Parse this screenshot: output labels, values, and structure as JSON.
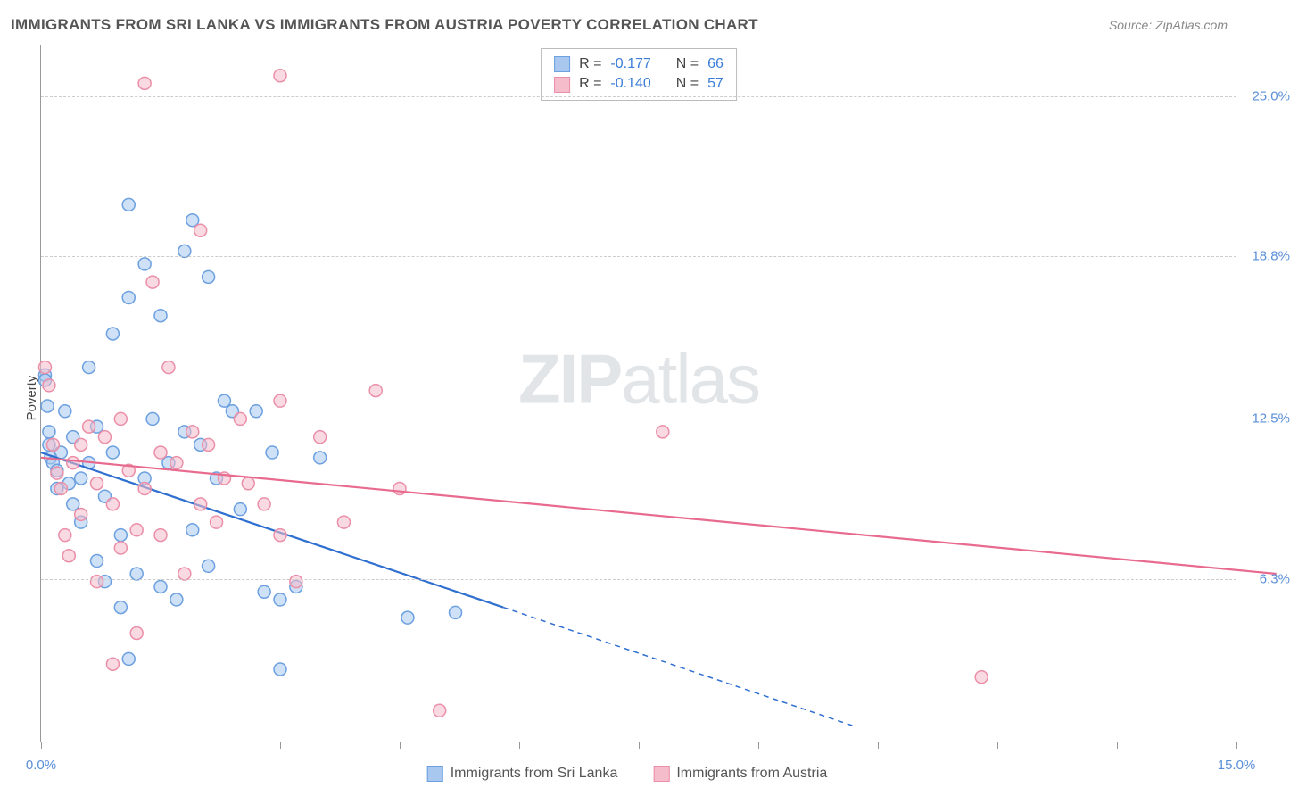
{
  "title": "IMMIGRANTS FROM SRI LANKA VS IMMIGRANTS FROM AUSTRIA POVERTY CORRELATION CHART",
  "source": "Source: ZipAtlas.com",
  "watermark_prefix": "ZIP",
  "watermark_suffix": "atlas",
  "y_axis_label": "Poverty",
  "chart": {
    "type": "scatter",
    "xlim": [
      0,
      15
    ],
    "ylim": [
      0,
      27
    ],
    "x_ticks": [
      0,
      1.5,
      3,
      4.5,
      6,
      7.5,
      9,
      10.5,
      12,
      13.5,
      15
    ],
    "x_tick_labels": {
      "0": "0.0%",
      "15": "15.0%"
    },
    "y_gridlines": [
      6.3,
      12.5,
      18.8,
      25.0
    ],
    "y_tick_labels": [
      "6.3%",
      "12.5%",
      "18.8%",
      "25.0%"
    ],
    "background_color": "#ffffff",
    "grid_color": "#cccccc",
    "axis_color": "#999999",
    "tick_label_color": "#5a8fd8",
    "marker_radius": 7,
    "marker_stroke_width": 1.5,
    "trend_line_width": 2.2,
    "series": [
      {
        "name": "Immigrants from Sri Lanka",
        "fill_color": "#a8c8ef",
        "stroke_color": "#6ca0e0",
        "line_color": "#2f6fd0",
        "fill_opacity": 0.55,
        "R": "-0.177",
        "N": "66",
        "trend": {
          "x1": 0,
          "y1": 11.2,
          "x2": 5.8,
          "y2": 5.2,
          "x2_dash": 10.2,
          "y2_dash": 0.6
        },
        "points": [
          [
            0.05,
            14.2
          ],
          [
            0.05,
            14.0
          ],
          [
            0.08,
            13.0
          ],
          [
            0.1,
            12.0
          ],
          [
            0.1,
            11.5
          ],
          [
            0.12,
            11.0
          ],
          [
            0.15,
            10.8
          ],
          [
            0.2,
            10.5
          ],
          [
            0.2,
            9.8
          ],
          [
            0.25,
            11.2
          ],
          [
            0.3,
            12.8
          ],
          [
            0.35,
            10.0
          ],
          [
            0.4,
            9.2
          ],
          [
            0.4,
            11.8
          ],
          [
            0.5,
            10.2
          ],
          [
            0.5,
            8.5
          ],
          [
            0.6,
            14.5
          ],
          [
            0.6,
            10.8
          ],
          [
            0.7,
            12.2
          ],
          [
            0.7,
            7.0
          ],
          [
            0.8,
            9.5
          ],
          [
            0.8,
            6.2
          ],
          [
            0.9,
            15.8
          ],
          [
            0.9,
            11.2
          ],
          [
            1.0,
            5.2
          ],
          [
            1.0,
            8.0
          ],
          [
            1.1,
            20.8
          ],
          [
            1.1,
            17.2
          ],
          [
            1.1,
            3.2
          ],
          [
            1.2,
            6.5
          ],
          [
            1.3,
            18.5
          ],
          [
            1.3,
            10.2
          ],
          [
            1.4,
            12.5
          ],
          [
            1.5,
            16.5
          ],
          [
            1.5,
            6.0
          ],
          [
            1.6,
            10.8
          ],
          [
            1.7,
            5.5
          ],
          [
            1.8,
            19.0
          ],
          [
            1.8,
            12.0
          ],
          [
            1.9,
            20.2
          ],
          [
            1.9,
            8.2
          ],
          [
            2.0,
            11.5
          ],
          [
            2.1,
            18.0
          ],
          [
            2.1,
            6.8
          ],
          [
            2.2,
            10.2
          ],
          [
            2.3,
            13.2
          ],
          [
            2.4,
            12.8
          ],
          [
            2.5,
            9.0
          ],
          [
            2.7,
            12.8
          ],
          [
            2.8,
            5.8
          ],
          [
            2.9,
            11.2
          ],
          [
            3.0,
            5.5
          ],
          [
            3.0,
            2.8
          ],
          [
            3.2,
            6.0
          ],
          [
            3.5,
            11.0
          ],
          [
            4.6,
            4.8
          ],
          [
            5.2,
            5.0
          ]
        ]
      },
      {
        "name": "Immigrants from Austria",
        "fill_color": "#f5bccb",
        "stroke_color": "#eb8fa8",
        "line_color": "#e86a8e",
        "fill_opacity": 0.55,
        "R": "-0.140",
        "N": "57",
        "trend": {
          "x1": 0,
          "y1": 11.0,
          "x2": 15.5,
          "y2": 6.5
        },
        "points": [
          [
            0.05,
            14.5
          ],
          [
            0.1,
            13.8
          ],
          [
            0.15,
            11.5
          ],
          [
            0.2,
            10.4
          ],
          [
            0.25,
            9.8
          ],
          [
            0.3,
            8.0
          ],
          [
            0.35,
            7.2
          ],
          [
            0.4,
            10.8
          ],
          [
            0.5,
            11.5
          ],
          [
            0.5,
            8.8
          ],
          [
            0.6,
            12.2
          ],
          [
            0.7,
            10.0
          ],
          [
            0.7,
            6.2
          ],
          [
            0.8,
            11.8
          ],
          [
            0.9,
            9.2
          ],
          [
            0.9,
            3.0
          ],
          [
            1.0,
            12.5
          ],
          [
            1.0,
            7.5
          ],
          [
            1.1,
            10.5
          ],
          [
            1.2,
            8.2
          ],
          [
            1.2,
            4.2
          ],
          [
            1.3,
            25.5
          ],
          [
            1.3,
            9.8
          ],
          [
            1.4,
            17.8
          ],
          [
            1.5,
            11.2
          ],
          [
            1.5,
            8.0
          ],
          [
            1.6,
            14.5
          ],
          [
            1.7,
            10.8
          ],
          [
            1.8,
            6.5
          ],
          [
            1.9,
            12.0
          ],
          [
            2.0,
            19.8
          ],
          [
            2.0,
            9.2
          ],
          [
            2.1,
            11.5
          ],
          [
            2.2,
            8.5
          ],
          [
            2.3,
            10.2
          ],
          [
            2.5,
            12.5
          ],
          [
            2.6,
            10.0
          ],
          [
            2.8,
            9.2
          ],
          [
            3.0,
            13.2
          ],
          [
            3.0,
            8.0
          ],
          [
            3.0,
            25.8
          ],
          [
            3.2,
            6.2
          ],
          [
            3.5,
            11.8
          ],
          [
            3.8,
            8.5
          ],
          [
            4.2,
            13.6
          ],
          [
            4.5,
            9.8
          ],
          [
            5.0,
            1.2
          ],
          [
            7.8,
            12.0
          ],
          [
            11.8,
            2.5
          ]
        ]
      }
    ]
  },
  "legend": {
    "R_label": "R =",
    "N_label": "N ="
  }
}
